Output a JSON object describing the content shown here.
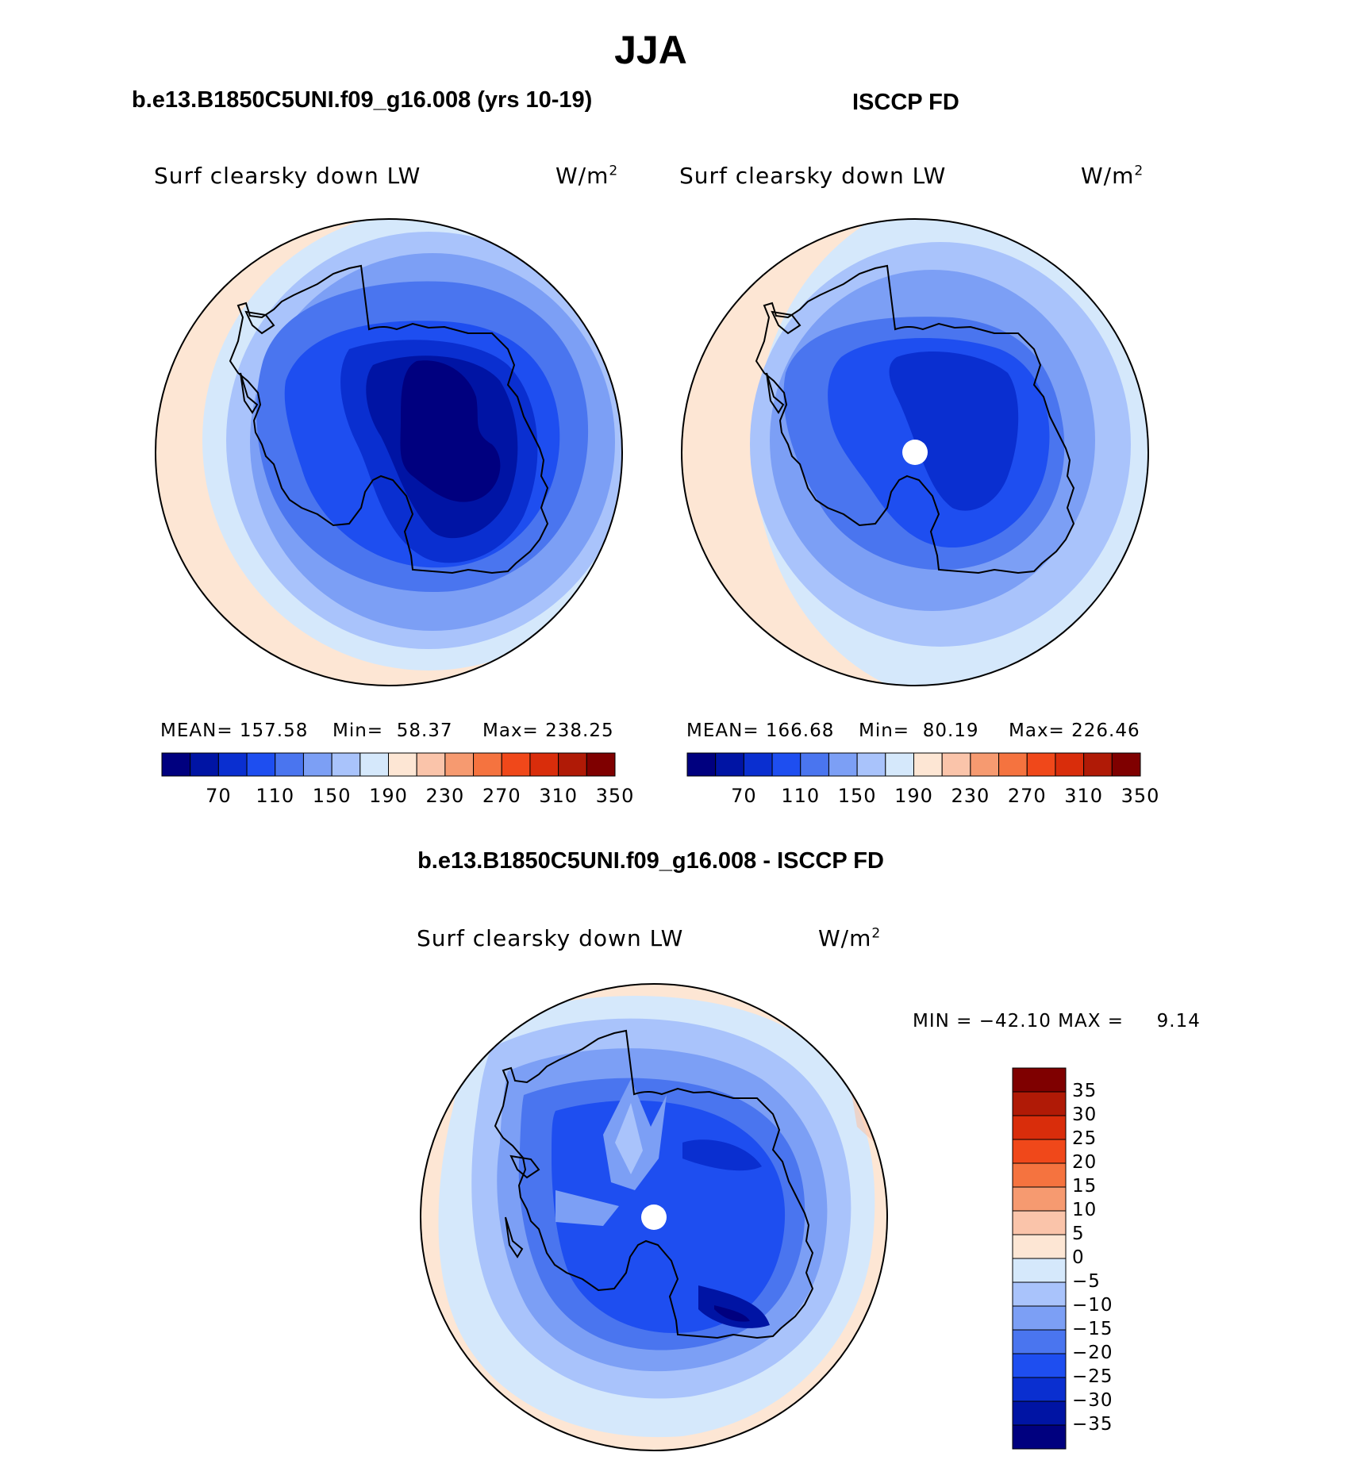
{
  "title": "JJA",
  "panels": [
    {
      "case": "b.e13.B1850C5UNI.f09_g16.008 (yrs 10-19)",
      "variable": "Surf clearsky down LW",
      "units": "W/m",
      "units_exp": "2",
      "mean_text": "MEAN= 157.58",
      "min_text": "Min=  58.37",
      "max_text": "Max= 238.25"
    },
    {
      "case": "ISCCP FD",
      "variable": "Surf clearsky down LW",
      "units": "W/m",
      "units_exp": "2",
      "mean_text": "MEAN= 166.68",
      "min_text": "Min=  80.19",
      "max_text": "Max= 226.46"
    },
    {
      "case": "b.e13.B1850C5UNI.f09_g16.008 - ISCCP FD",
      "variable": "Surf clearsky down LW",
      "units": "W/m",
      "units_exp": "2",
      "minmax_text": "MIN = −42.10 MAX =     9.14"
    }
  ],
  "colorbar_abs": {
    "tick_labels": [
      "70",
      "110",
      "150",
      "190",
      "230",
      "270",
      "310",
      "350"
    ],
    "colors": [
      "#00007f",
      "#0014a4",
      "#0a2fd0",
      "#1e4ef0",
      "#4a75ef",
      "#7c9ff5",
      "#a9c3fb",
      "#d5e8fb",
      "#fde6d4",
      "#fac4aa",
      "#f69a70",
      "#f5733f",
      "#f0481a",
      "#d92d0b",
      "#b01a06",
      "#7f0000"
    ]
  },
  "colorbar_diff": {
    "tick_labels": [
      "35",
      "30",
      "25",
      "20",
      "15",
      "10",
      "5",
      "0",
      "−5",
      "−10",
      "−15",
      "−20",
      "−25",
      "−30",
      "−35"
    ],
    "colors": [
      "#7f0000",
      "#b01a06",
      "#d92d0b",
      "#f0481a",
      "#f5733f",
      "#f69a70",
      "#fac4aa",
      "#fde6d4",
      "#d5e8fb",
      "#a9c3fb",
      "#7c9ff5",
      "#4a75ef",
      "#1e4ef0",
      "#0a2fd0",
      "#0014a4",
      "#00007f"
    ]
  },
  "chart_data": [
    {
      "type": "heatmap",
      "title": "b.e13.B1850C5UNI.f09_g16.008 (yrs 10-19)",
      "projection": "south polar stereographic",
      "variable": "Surf clearsky down LW",
      "units": "W/m2",
      "mean": 157.58,
      "min": 58.37,
      "max": 238.25,
      "contour_levels": [
        70,
        90,
        110,
        130,
        150,
        170,
        190,
        210,
        230,
        250,
        270,
        290,
        310,
        330,
        350
      ]
    },
    {
      "type": "heatmap",
      "title": "ISCCP FD",
      "projection": "south polar stereographic",
      "variable": "Surf clearsky down LW",
      "units": "W/m2",
      "mean": 166.68,
      "min": 80.19,
      "max": 226.46,
      "contour_levels": [
        70,
        90,
        110,
        130,
        150,
        170,
        190,
        210,
        230,
        250,
        270,
        290,
        310,
        330,
        350
      ]
    },
    {
      "type": "heatmap",
      "title": "b.e13.B1850C5UNI.f09_g16.008 - ISCCP FD",
      "projection": "south polar stereographic",
      "variable": "Surf clearsky down LW",
      "units": "W/m2",
      "min": -42.1,
      "max": 9.14,
      "contour_levels": [
        -35,
        -30,
        -25,
        -20,
        -15,
        -10,
        -5,
        0,
        5,
        10,
        15,
        20,
        25,
        30,
        35
      ]
    }
  ]
}
